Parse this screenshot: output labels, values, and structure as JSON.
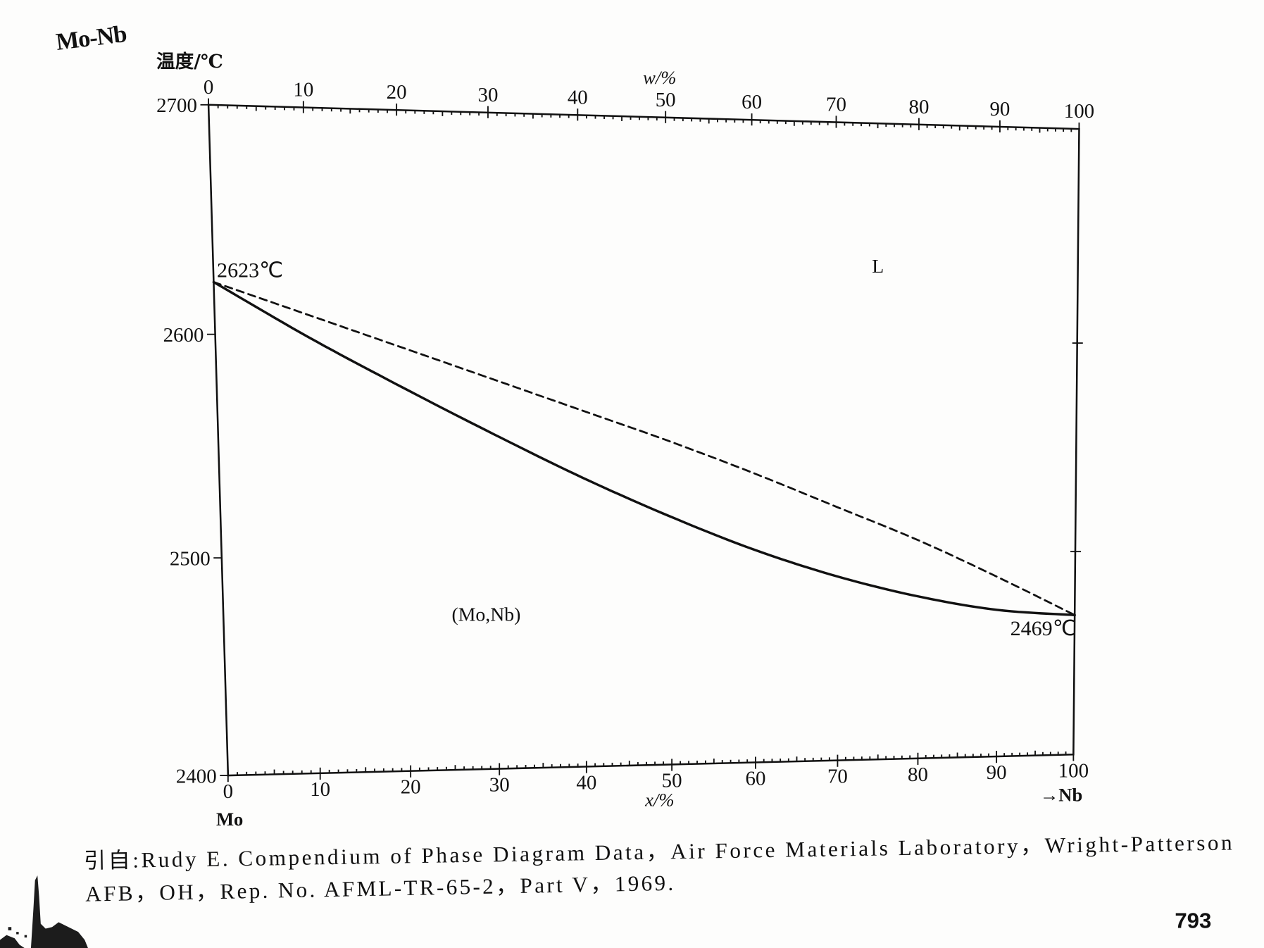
{
  "chart_data": {
    "type": "line",
    "title": "Mo-Nb",
    "ylabel": "温度/℃",
    "xlabel": "x/%",
    "x2label": "w/%",
    "xlim": [
      0,
      100
    ],
    "ylim": [
      2400,
      2700
    ],
    "xticks": [
      "0",
      "10",
      "20",
      "30",
      "40",
      "50",
      "60",
      "70",
      "80",
      "90",
      "100"
    ],
    "x2ticks": [
      "0",
      "10",
      "20",
      "30",
      "40",
      "50",
      "60",
      "70",
      "80",
      "90",
      "100"
    ],
    "yticks": [
      "2700",
      "2600",
      "2500",
      "2400"
    ],
    "component_labels": [
      "Mo",
      "→Nb"
    ],
    "grid": false,
    "x": [
      0,
      10,
      20,
      30,
      40,
      50,
      60,
      70,
      80,
      90,
      100
    ],
    "series": [
      {
        "dash": "dashed",
        "color": "#111111",
        "values": [
          2623,
          2609,
          2595,
          2581,
          2567,
          2553,
          2538,
          2522,
          2506,
          2488,
          2469
        ]
      },
      {
        "dash": "solid",
        "color": "#111111",
        "values": [
          2623,
          2599,
          2577,
          2556,
          2536,
          2518,
          2502,
          2489,
          2479,
          2472,
          2469
        ]
      }
    ],
    "annotations": [
      {
        "text": "2623℃",
        "x": 0,
        "y": 2623
      },
      {
        "text": "2469℃",
        "x": 100,
        "y": 2469
      }
    ],
    "region_labels": [
      "L",
      "(Mo,Nb)"
    ]
  },
  "caption": [
    "引自:Rudy E. Compendium of Phase Diagram Data，Air Force Materials Laboratory，Wright-Patterson",
    "AFB，OH，Rep. No. AFML-TR-65-2，Part V，1969."
  ],
  "page_number": "793"
}
